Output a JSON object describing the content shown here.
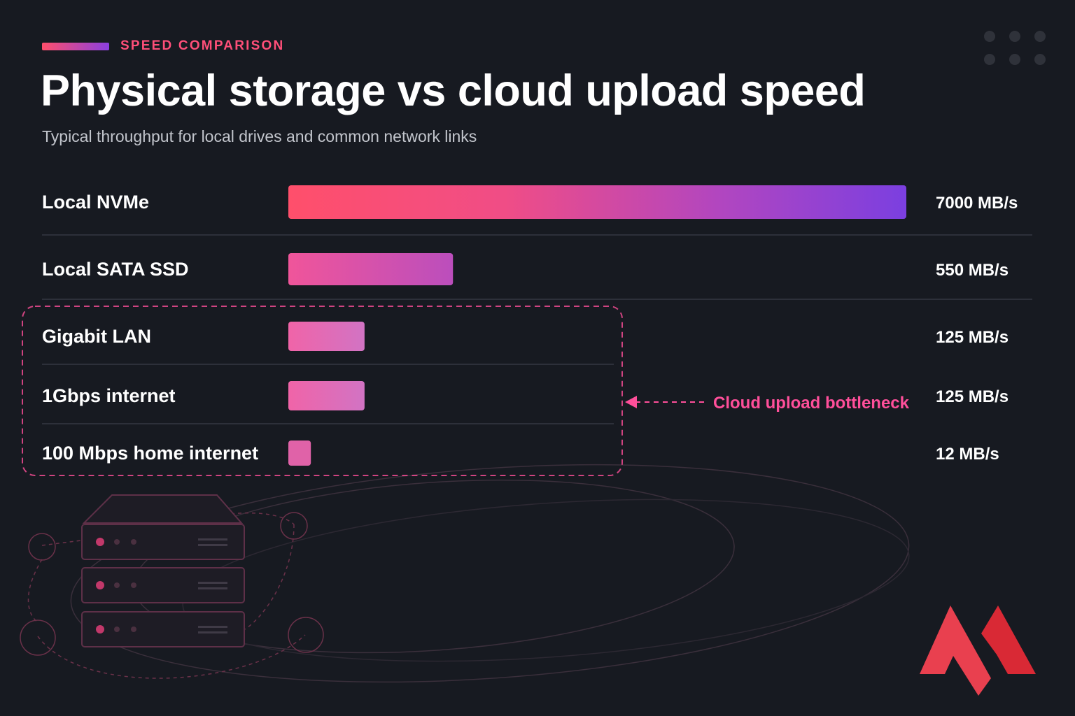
{
  "header": {
    "eyebrow": "SPEED COMPARISON",
    "title": "Physical storage vs cloud upload speed",
    "subtitle": "Typical throughput for local drives and common network links"
  },
  "chart_data": {
    "type": "bar",
    "orientation": "horizontal",
    "title": "Physical storage vs cloud upload speed",
    "subtitle": "Typical throughput for local drives and common network links",
    "unit": "MB/s",
    "categories": [
      "Local NVMe",
      "Local SATA SSD",
      "Gigabit LAN",
      "1Gbps internet",
      "100 Mbps home internet"
    ],
    "values": [
      7000,
      550,
      125,
      125,
      12
    ],
    "value_labels": [
      "7000 MB/s",
      "550 MB/s",
      "125 MB/s",
      "125 MB/s",
      "12 MB/s"
    ],
    "grid": false,
    "annotation": {
      "text": "Cloud upload bottleneck",
      "group": [
        "Gigabit LAN",
        "1Gbps internet",
        "100 Mbps home internet"
      ],
      "color": "#ff4f9a"
    },
    "colors": {
      "gradient_start": "#ff4f6b",
      "gradient_end": "#7b3fe0",
      "text": "#ffffff",
      "separator": "#353842"
    }
  },
  "icons": {
    "logo": "red-m-logo",
    "server": "server-rack-icon",
    "menu": "dots-grid-icon"
  }
}
